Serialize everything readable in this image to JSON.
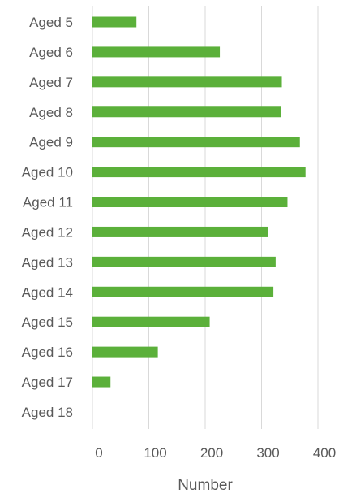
{
  "chart_data": {
    "type": "bar",
    "orientation": "horizontal",
    "categories": [
      "Aged 5",
      "Aged 6",
      "Aged 7",
      "Aged 8",
      "Aged 9",
      "Aged 10",
      "Aged 11",
      "Aged 12",
      "Aged 13",
      "Aged 14",
      "Aged 15",
      "Aged 16",
      "Aged 17",
      "Aged 18"
    ],
    "values": [
      78,
      226,
      336,
      334,
      368,
      378,
      346,
      312,
      325,
      321,
      208,
      116,
      32,
      0
    ],
    "title": "",
    "xlabel": "Number",
    "ylabel": "",
    "xlim": [
      0,
      400
    ],
    "xticks": [
      "0",
      "100",
      "200",
      "300",
      "400"
    ],
    "grid": "vertical",
    "legend": "none",
    "bar_color": "#5bb03a",
    "grid_color": "#d9d9d9",
    "text_color": "#595959"
  }
}
